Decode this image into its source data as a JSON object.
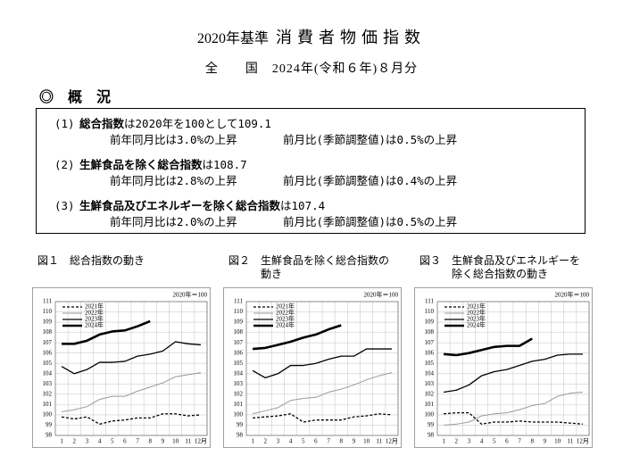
{
  "header": {
    "title_prefix": "2020年基準",
    "title": "消費者物価指数",
    "subtitle": "全　　国　2024年(令和６年)８月分",
    "section": "◎ 概 況"
  },
  "summary": [
    {
      "number": "(1)",
      "name": "総合指数",
      "text": "は2020年を100として109.1",
      "yoy": "前年同月比は3.0%の上昇",
      "mom": "前月比(季節調整値)は0.5%の上昇"
    },
    {
      "number": "(2)",
      "name": "生鮮食品を除く総合指数",
      "text": "は108.7",
      "yoy": "前年同月比は2.8%の上昇",
      "mom": "前月比(季節調整値)は0.4%の上昇"
    },
    {
      "number": "(3)",
      "name": "生鮮食品及びエネルギーを除く総合指数",
      "text": "は107.4",
      "yoy": "前年同月比は2.0%の上昇",
      "mom": "前月比(季節調整値)は0.5%の上昇"
    }
  ],
  "figures": [
    {
      "number": "図１",
      "caption": "総合指数の動き"
    },
    {
      "number": "図２",
      "caption": "生鮮食品を除く総合指数の動き"
    },
    {
      "number": "図３",
      "caption": "生鮮食品及びエネルギーを除く総合指数の動き"
    }
  ],
  "chart_data": [
    {
      "type": "line",
      "unit_label": "2020年＝100",
      "categories": [
        "1",
        "2",
        "3",
        "4",
        "5",
        "6",
        "7",
        "8",
        "9",
        "10",
        "11",
        "12月"
      ],
      "ylim": [
        98,
        111
      ],
      "yticks": [
        98,
        99,
        100,
        101,
        102,
        103,
        104,
        105,
        106,
        107,
        108,
        109,
        110,
        111
      ],
      "grid": true,
      "legend": "upper left",
      "series": [
        {
          "name": "2021年",
          "color": "#000000",
          "line_style": "dashed",
          "line_width": 1.3,
          "values": [
            99.8,
            99.6,
            99.8,
            99.1,
            99.4,
            99.5,
            99.7,
            99.7,
            100.1,
            100.1,
            99.9,
            100.0
          ]
        },
        {
          "name": "2022年",
          "color": "#999999",
          "line_style": "solid",
          "line_width": 1,
          "values": [
            100.3,
            100.5,
            100.8,
            101.5,
            101.8,
            101.8,
            102.3,
            102.7,
            103.1,
            103.7,
            103.9,
            104.1
          ]
        },
        {
          "name": "2023年",
          "color": "#000000",
          "line_style": "solid",
          "line_width": 1.3,
          "values": [
            104.7,
            104.0,
            104.4,
            105.1,
            105.1,
            105.2,
            105.7,
            105.9,
            106.2,
            107.1,
            106.9,
            106.8
          ]
        },
        {
          "name": "2024年",
          "color": "#000000",
          "line_style": "solid",
          "line_width": 2.6,
          "values": [
            106.9,
            106.9,
            107.2,
            107.8,
            108.1,
            108.2,
            108.6,
            109.1,
            null,
            null,
            null,
            null
          ]
        }
      ]
    },
    {
      "type": "line",
      "unit_label": "2020年＝100",
      "categories": [
        "1",
        "2",
        "3",
        "4",
        "5",
        "6",
        "7",
        "8",
        "9",
        "10",
        "11",
        "12月"
      ],
      "ylim": [
        98,
        111
      ],
      "yticks": [
        98,
        99,
        100,
        101,
        102,
        103,
        104,
        105,
        106,
        107,
        108,
        109,
        110,
        111
      ],
      "grid": true,
      "legend": "upper left",
      "series": [
        {
          "name": "2021年",
          "color": "#000000",
          "line_style": "dashed",
          "line_width": 1.3,
          "values": [
            99.7,
            99.8,
            99.9,
            100.1,
            99.3,
            99.5,
            99.5,
            99.5,
            99.8,
            99.9,
            100.1,
            100.0
          ]
        },
        {
          "name": "2022年",
          "color": "#999999",
          "line_style": "solid",
          "line_width": 1,
          "values": [
            100.1,
            100.4,
            100.7,
            101.4,
            101.6,
            101.7,
            102.2,
            102.5,
            102.9,
            103.4,
            103.8,
            104.1
          ]
        },
        {
          "name": "2023年",
          "color": "#000000",
          "line_style": "solid",
          "line_width": 1.3,
          "values": [
            104.3,
            103.6,
            104.0,
            104.8,
            104.8,
            105.0,
            105.4,
            105.7,
            105.7,
            106.4,
            106.4,
            106.4
          ]
        },
        {
          "name": "2024年",
          "color": "#000000",
          "line_style": "solid",
          "line_width": 2.6,
          "values": [
            106.4,
            106.5,
            106.8,
            107.1,
            107.5,
            107.8,
            108.3,
            108.7,
            null,
            null,
            null,
            null
          ]
        }
      ]
    },
    {
      "type": "line",
      "unit_label": "2020年＝100",
      "categories": [
        "1",
        "2",
        "3",
        "4",
        "5",
        "6",
        "7",
        "8",
        "9",
        "10",
        "11",
        "12月"
      ],
      "ylim": [
        98,
        111
      ],
      "yticks": [
        98,
        99,
        100,
        101,
        102,
        103,
        104,
        105,
        106,
        107,
        108,
        109,
        110,
        111
      ],
      "grid": true,
      "legend": "upper left",
      "series": [
        {
          "name": "2021年",
          "color": "#000000",
          "line_style": "dashed",
          "line_width": 1.3,
          "values": [
            100.1,
            100.2,
            100.2,
            99.1,
            99.3,
            99.3,
            99.4,
            99.3,
            99.3,
            99.3,
            99.2,
            99.1
          ]
        },
        {
          "name": "2022年",
          "color": "#999999",
          "line_style": "solid",
          "line_width": 1,
          "values": [
            99.0,
            99.1,
            99.3,
            99.9,
            100.1,
            100.2,
            100.5,
            100.9,
            101.1,
            101.8,
            102.1,
            102.2
          ]
        },
        {
          "name": "2023年",
          "color": "#000000",
          "line_style": "solid",
          "line_width": 1.3,
          "values": [
            102.2,
            102.4,
            102.9,
            103.8,
            104.2,
            104.4,
            104.8,
            105.2,
            105.4,
            105.8,
            105.9,
            105.9
          ]
        },
        {
          "name": "2024年",
          "color": "#000000",
          "line_style": "solid",
          "line_width": 2.6,
          "values": [
            105.9,
            105.8,
            106.0,
            106.3,
            106.6,
            106.7,
            106.7,
            107.4,
            null,
            null,
            null,
            null
          ]
        }
      ]
    }
  ]
}
